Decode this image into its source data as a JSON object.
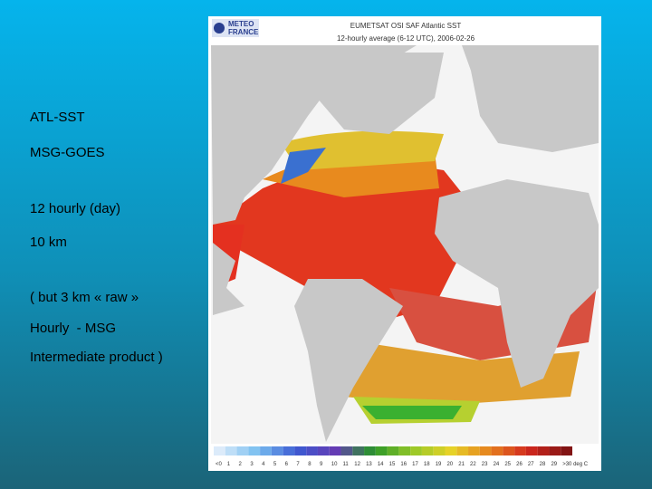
{
  "slide": {
    "bullets": [
      "ATL-SST",
      "MSG-GOES",
      "12 hourly (day)",
      "10 km",
      "( but 3 km « raw »",
      "Hourly  - MSG",
      "Intermediate product )"
    ],
    "map": {
      "logo": [
        "METEO",
        "FRANCE"
      ],
      "title": "EUMETSAT OSI SAF Atlantic SST",
      "subtitle": "12-hourly average (6-12 UTC), 2006-02-26",
      "colorbar_labels": [
        "<0",
        "1",
        "2",
        "3",
        "4",
        "5",
        "6",
        "7",
        "8",
        "9",
        "10",
        "11",
        "12",
        "13",
        "14",
        "15",
        "16",
        "17",
        "18",
        "19",
        "20",
        "21",
        "22",
        "23",
        "24",
        "25",
        "26",
        "27",
        "28",
        "29",
        ">30 deg C"
      ]
    }
  }
}
